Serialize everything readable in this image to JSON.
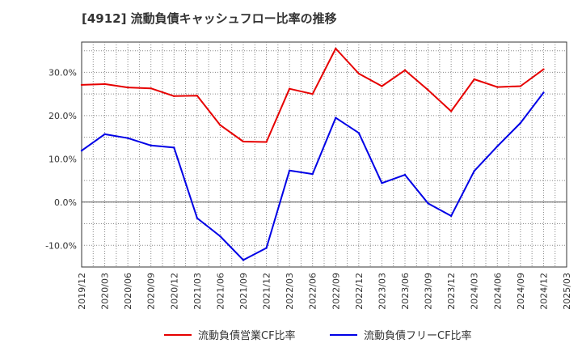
{
  "chart_data": {
    "type": "line",
    "title": "[4912]  流動負債キャッシュフロー比率の推移",
    "xlabel": "",
    "ylabel": "",
    "ylim": [
      -15,
      37
    ],
    "y_ticks": [
      30,
      20,
      10,
      0,
      -10
    ],
    "y_tick_labels": [
      "30.0%",
      "20.0%",
      "10.0%",
      "0.0%",
      "-10.0%"
    ],
    "categories": [
      "2019/12",
      "2020/03",
      "2020/06",
      "2020/09",
      "2020/12",
      "2021/03",
      "2021/06",
      "2021/09",
      "2021/12",
      "2022/03",
      "2022/06",
      "2022/09",
      "2022/12",
      "2023/03",
      "2023/06",
      "2023/09",
      "2023/12",
      "2024/03",
      "2024/06",
      "2024/09",
      "2024/12",
      "2025/03"
    ],
    "grid": true,
    "legend_position": "bottom",
    "series": [
      {
        "name": "流動負債営業CF比率",
        "color": "#e60000",
        "values": [
          27.1,
          27.3,
          26.5,
          26.3,
          24.5,
          24.6,
          17.8,
          14.0,
          13.9,
          26.2,
          25.0,
          35.5,
          29.7,
          26.8,
          30.5,
          25.9,
          21.0,
          28.4,
          26.6,
          26.8,
          30.7,
          null
        ]
      },
      {
        "name": "流動負債フリーCF比率",
        "color": "#0000e6",
        "values": [
          11.9,
          15.7,
          14.8,
          13.1,
          12.6,
          -3.7,
          -7.9,
          -13.4,
          -10.6,
          7.3,
          6.5,
          19.5,
          16.0,
          4.4,
          6.3,
          -0.3,
          -3.2,
          7.2,
          12.9,
          18.3,
          25.3,
          null
        ]
      }
    ]
  }
}
